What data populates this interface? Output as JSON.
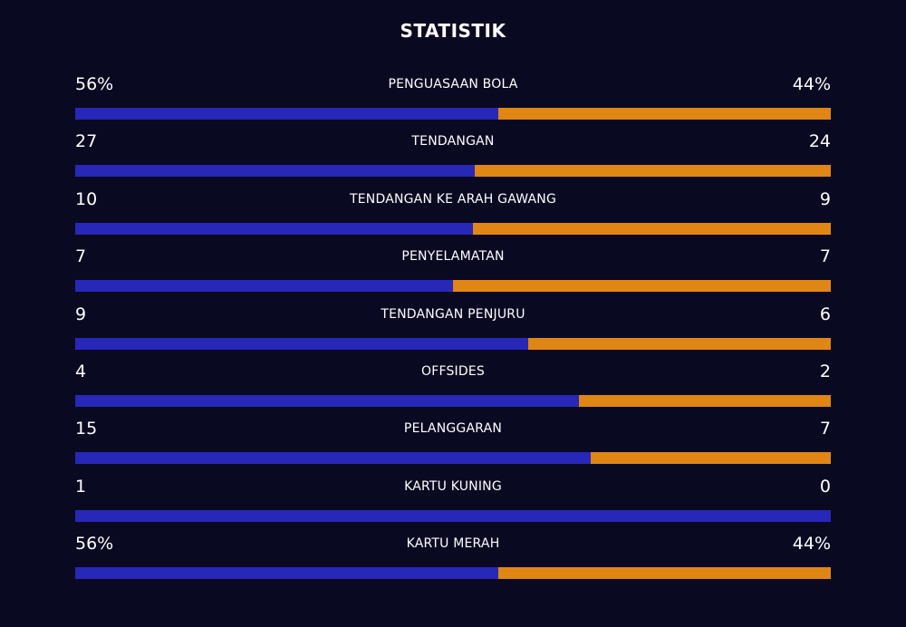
{
  "title": "STATISTIK",
  "colors": {
    "home": "#2727b8",
    "away": "#e08615",
    "background": "#0a0922"
  },
  "stats": [
    {
      "label": "PENGUASAAN BOLA",
      "home_text": "56%",
      "away_text": "44%",
      "home_share": 0.56
    },
    {
      "label": "TENDANGAN",
      "home_text": "27",
      "away_text": "24",
      "home_share": 0.529
    },
    {
      "label": "TENDANGAN KE ARAH GAWANG",
      "home_text": "10",
      "away_text": "9",
      "home_share": 0.526
    },
    {
      "label": "PENYELAMATAN",
      "home_text": "7",
      "away_text": "7",
      "home_share": 0.5
    },
    {
      "label": "TENDANGAN PENJURU",
      "home_text": "9",
      "away_text": "6",
      "home_share": 0.6
    },
    {
      "label": "OFFSIDES",
      "home_text": "4",
      "away_text": "2",
      "home_share": 0.667
    },
    {
      "label": "PELANGGARAN",
      "home_text": "15",
      "away_text": "7",
      "home_share": 0.682
    },
    {
      "label": "KARTU KUNING",
      "home_text": "1",
      "away_text": "0",
      "home_share": 1.0
    },
    {
      "label": "KARTU MERAH",
      "home_text": "56%",
      "away_text": "44%",
      "home_share": 0.56
    }
  ]
}
